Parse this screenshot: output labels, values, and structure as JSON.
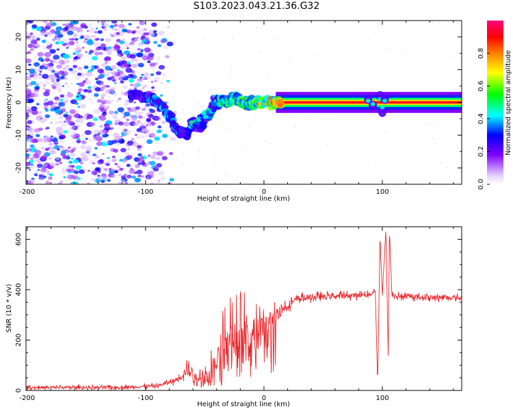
{
  "title": "S103.2023.043.21.36.G32",
  "chart_data": [
    {
      "type": "heatmap",
      "xlabel": "Height of straight line (km)",
      "ylabel": "Frequency (Hz)",
      "xlim": [
        -201,
        167
      ],
      "ylim": [
        -25,
        25
      ],
      "x_ticks": [
        -200,
        -100,
        0,
        100
      ],
      "y_ticks": [
        20,
        10,
        0,
        -10,
        -20
      ],
      "grid": false,
      "colorbar": {
        "label": "Normalized spectral amplitude",
        "range": [
          0,
          1
        ],
        "ticks": [
          "0.0",
          "0.2",
          "0.4",
          "0.6",
          "0.8"
        ],
        "colors": [
          "#ffffff",
          "#8000ff",
          "#0000ff",
          "#00ffff",
          "#00ff00",
          "#ffff00",
          "#ff8000",
          "#ff0000",
          "#ff0080"
        ]
      },
      "ridge": {
        "description_points_x": [
          -110,
          -100,
          -90,
          -80,
          -72,
          -65,
          -60,
          -55,
          -48,
          -42,
          -35,
          -25,
          -15,
          -5,
          10,
          50,
          85,
          90,
          95,
          100,
          110,
          167
        ],
        "description_points_y": [
          2,
          2,
          0,
          -4,
          -9,
          -10,
          -6,
          -8,
          -5,
          0,
          0,
          1,
          0,
          0,
          0,
          0,
          0,
          1,
          0,
          0,
          0,
          0
        ],
        "amplitude": [
          0.3,
          0.35,
          0.4,
          0.4,
          0.4,
          0.3,
          0.3,
          0.3,
          0.35,
          0.4,
          0.5,
          0.6,
          0.6,
          0.7,
          0.85,
          0.95,
          0.95,
          0.5,
          0.8,
          0.5,
          0.95,
          0.95
        ]
      },
      "scatter_noise_region_x": [
        -201,
        -90
      ]
    },
    {
      "type": "line",
      "xlabel": "Height of straight line (km)",
      "ylabel": "SNR (10 * v/v)",
      "xlim": [
        -201,
        167
      ],
      "ylim": [
        0,
        650
      ],
      "x_ticks": [
        -200,
        -100,
        0,
        100
      ],
      "y_ticks": [
        0,
        200,
        400,
        600
      ],
      "color": "#e8262b",
      "grid": false,
      "envelope_x": [
        -201,
        -120,
        -90,
        -75,
        -65,
        -55,
        -50,
        -45,
        -40,
        -35,
        -30,
        -20,
        -10,
        0,
        10,
        20,
        30,
        40,
        60,
        80,
        90,
        94,
        96,
        98,
        100,
        103,
        105,
        106,
        108,
        110,
        120,
        140,
        167
      ],
      "envelope_y": [
        12,
        12,
        18,
        40,
        80,
        60,
        45,
        70,
        130,
        170,
        200,
        230,
        240,
        260,
        300,
        340,
        365,
        370,
        375,
        378,
        382,
        400,
        20,
        610,
        380,
        640,
        120,
        640,
        380,
        375,
        372,
        370,
        368
      ],
      "noise_amplitude_x": [
        -201,
        -80,
        -60,
        -50,
        -40,
        -30,
        -20,
        -10,
        0,
        20,
        40,
        167
      ],
      "noise_amplitude_y": [
        5,
        6,
        25,
        20,
        60,
        90,
        80,
        60,
        40,
        15,
        10,
        8
      ]
    }
  ]
}
